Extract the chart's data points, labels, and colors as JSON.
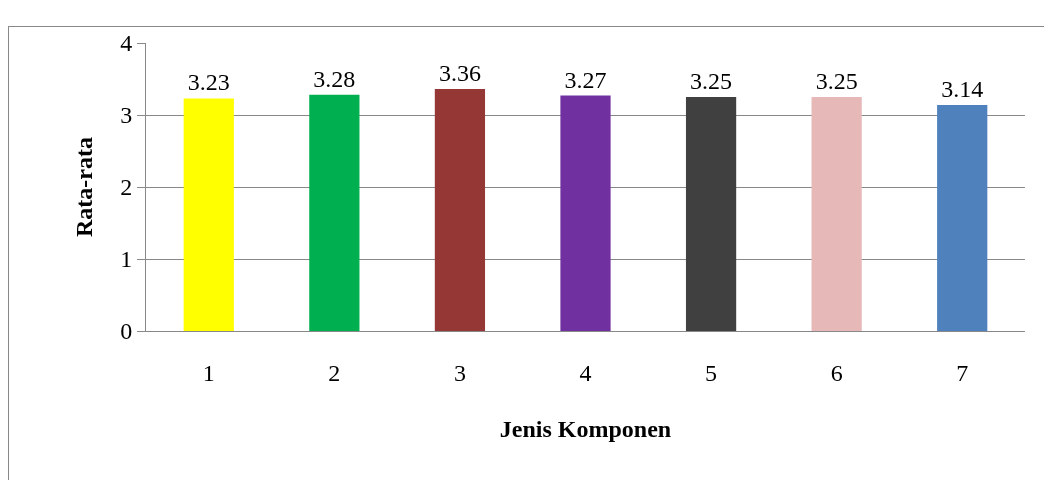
{
  "chart_data": {
    "type": "bar",
    "xlabel": "Jenis Komponen",
    "ylabel": "Rata-rata",
    "categories": [
      "1",
      "2",
      "3",
      "4",
      "5",
      "6",
      "7"
    ],
    "values": [
      3.23,
      3.28,
      3.36,
      3.27,
      3.25,
      3.25,
      3.14
    ],
    "colors": [
      "#ffff00",
      "#00b050",
      "#953735",
      "#7030a0",
      "#404040",
      "#e6b9b8",
      "#4f81bd"
    ],
    "ylim": [
      0,
      4
    ],
    "yticks": [
      0,
      1,
      2,
      3,
      4
    ],
    "grid": "y",
    "data_labels": true
  }
}
